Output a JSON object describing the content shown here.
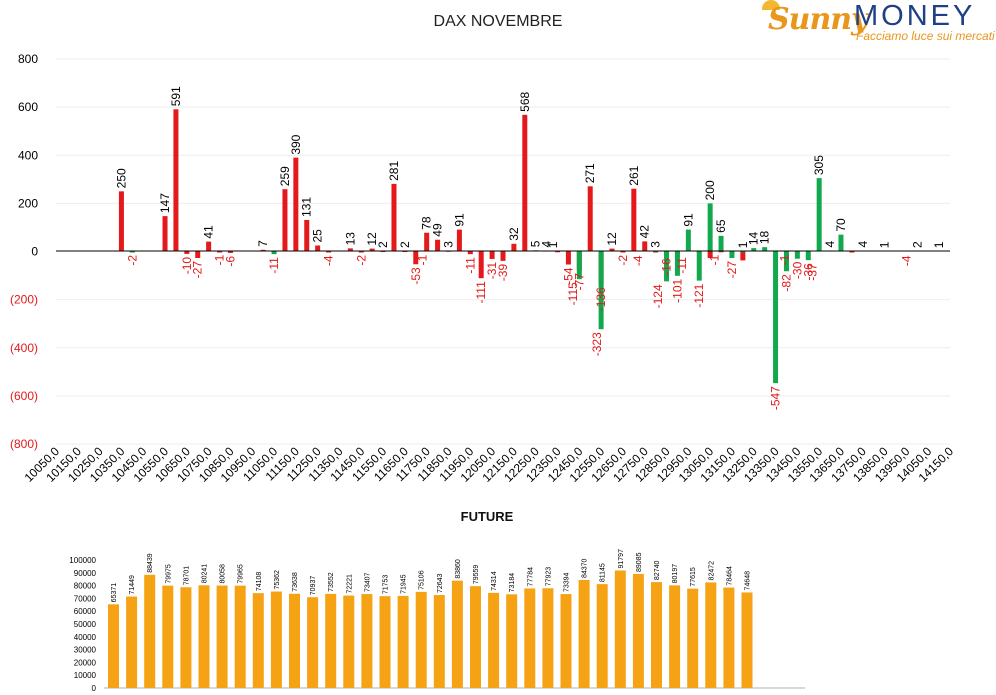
{
  "logo": {
    "brand_left": "Sunny",
    "brand_right": "MONEY",
    "tagline": "Facciamo luce sui mercati",
    "colors": {
      "orange": "#e8971c",
      "blue": "#1f3f86"
    }
  },
  "chart_data": [
    {
      "type": "bar",
      "title": "DAX NOVEMBRE",
      "ylim": [
        -800,
        800
      ],
      "yticks": [
        "800",
        "600",
        "400",
        "200",
        "0",
        "(200)",
        "(400)",
        "(600)",
        "(800)"
      ],
      "ytick_values": [
        800,
        600,
        400,
        200,
        0,
        -200,
        -400,
        -600,
        -800
      ],
      "xticks": [
        "10050,0",
        "10150,0",
        "10250,0",
        "10350,0",
        "10450,0",
        "10550,0",
        "10650,0",
        "10750,0",
        "10850,0",
        "10950,0",
        "11050,0",
        "11150,0",
        "11250,0",
        "11350,0",
        "11450,0",
        "11550,0",
        "11650,0",
        "11750,0",
        "11850,0",
        "11950,0",
        "12050,0",
        "12150,0",
        "12250,0",
        "12350,0",
        "12450,0",
        "12550,0",
        "12650,0",
        "12750,0",
        "12850,0",
        "12950,0",
        "13050,0",
        "13150,0",
        "13250,0",
        "13350,0",
        "13450,0",
        "13550,0",
        "13650,0",
        "13750,0",
        "13850,0",
        "13950,0",
        "14050,0",
        "14150,0"
      ],
      "x_range": [
        10050,
        14150
      ],
      "colors": {
        "red": "#e3191b",
        "green": "#12a84e",
        "negative_tick": "#e3191b"
      },
      "grid": true,
      "legend": "none",
      "series": [
        {
          "color": "red",
          "points": [
            {
              "x": 10350,
              "y": 250
            },
            {
              "x": 10400,
              "y": -2
            },
            {
              "x": 10550,
              "y": 147
            },
            {
              "x": 10600,
              "y": 591
            },
            {
              "x": 10650,
              "y": -10
            },
            {
              "x": 10700,
              "y": -27
            },
            {
              "x": 10750,
              "y": 41
            },
            {
              "x": 10800,
              "y": -1
            },
            {
              "x": 10850,
              "y": -6
            },
            {
              "x": 11000,
              "y": 7
            },
            {
              "x": 11100,
              "y": 259
            },
            {
              "x": 11150,
              "y": 390
            },
            {
              "x": 11200,
              "y": 131
            },
            {
              "x": 11250,
              "y": 25
            },
            {
              "x": 11300,
              "y": -4
            },
            {
              "x": 11400,
              "y": 13
            },
            {
              "x": 11450,
              "y": -2
            },
            {
              "x": 11500,
              "y": 12
            },
            {
              "x": 11550,
              "y": 2
            },
            {
              "x": 11600,
              "y": 281
            },
            {
              "x": 11650,
              "y": 2
            },
            {
              "x": 11700,
              "y": -53
            },
            {
              "x": 11750,
              "y": 78
            },
            {
              "x": 11800,
              "y": 49
            },
            {
              "x": 11850,
              "y": 3
            },
            {
              "x": 11900,
              "y": 91
            },
            {
              "x": 11950,
              "y": -11
            },
            {
              "x": 12000,
              "y": -111
            },
            {
              "x": 12050,
              "y": -31
            },
            {
              "x": 12100,
              "y": -39
            },
            {
              "x": 12150,
              "y": 32
            },
            {
              "x": 12200,
              "y": 568
            },
            {
              "x": 12250,
              "y": 5
            },
            {
              "x": 12300,
              "y": 4
            },
            {
              "x": 12350,
              "y": 1
            },
            {
              "x": 12400,
              "y": -54
            },
            {
              "x": 12450,
              "y": -77
            },
            {
              "x": 12500,
              "y": 271
            },
            {
              "x": 12550,
              "y": -136
            },
            {
              "x": 12600,
              "y": 12
            },
            {
              "x": 12650,
              "y": -2
            },
            {
              "x": 12700,
              "y": 261
            },
            {
              "x": 12750,
              "y": 42
            },
            {
              "x": 12800,
              "y": -4
            },
            {
              "x": 12850,
              "y": -16
            },
            {
              "x": 12900,
              "y": -11
            },
            {
              "x": 13000,
              "y": -1
            },
            {
              "x": 13050,
              "y": -27
            },
            {
              "x": 13100,
              "y": 1
            },
            {
              "x": 13200,
              "y": -37
            },
            {
              "x": 13700,
              "y": -4
            }
          ]
        },
        {
          "color": "green",
          "points": [
            {
              "x": 10400,
              "y": -2
            },
            {
              "x": 11050,
              "y": -11
            },
            {
              "x": 12450,
              "y": -115
            },
            {
              "x": 12550,
              "y": -323
            },
            {
              "x": 12800,
              "y": 3
            },
            {
              "x": 12850,
              "y": -124
            },
            {
              "x": 12900,
              "y": -101
            },
            {
              "x": 12950,
              "y": 91
            },
            {
              "x": 13000,
              "y": -121
            },
            {
              "x": 13050,
              "y": 200
            },
            {
              "x": 13100,
              "y": 65
            },
            {
              "x": 13150,
              "y": -27
            },
            {
              "x": 13200,
              "y": 1
            },
            {
              "x": 13250,
              "y": 14
            },
            {
              "x": 13300,
              "y": 18
            },
            {
              "x": 13350,
              "y": -547
            },
            {
              "x": 13400,
              "y": -82
            },
            {
              "x": 13450,
              "y": -30
            },
            {
              "x": 13500,
              "y": -36
            },
            {
              "x": 13550,
              "y": 305
            },
            {
              "x": 13600,
              "y": 4
            },
            {
              "x": 13650,
              "y": 70
            }
          ]
        }
      ],
      "labels": [
        {
          "x": 10350,
          "y": 250,
          "text": "250"
        },
        {
          "x": 10400,
          "y": -2,
          "text": "-2"
        },
        {
          "x": 10550,
          "y": 147,
          "text": "147"
        },
        {
          "x": 10600,
          "y": 591,
          "text": "591"
        },
        {
          "x": 10650,
          "y": -10,
          "text": "-10"
        },
        {
          "x": 10700,
          "y": -27,
          "text": "-27"
        },
        {
          "x": 10750,
          "y": 41,
          "text": "41"
        },
        {
          "x": 10800,
          "y": -1,
          "text": "-1"
        },
        {
          "x": 10850,
          "y": -6,
          "text": "-6"
        },
        {
          "x": 11000,
          "y": 7,
          "text": "7"
        },
        {
          "x": 11050,
          "y": -11,
          "text": "-11"
        },
        {
          "x": 11100,
          "y": 259,
          "text": "259"
        },
        {
          "x": 11150,
          "y": 390,
          "text": "390"
        },
        {
          "x": 11200,
          "y": 131,
          "text": "131"
        },
        {
          "x": 11250,
          "y": 25,
          "text": "25"
        },
        {
          "x": 11300,
          "y": -4,
          "text": "-4"
        },
        {
          "x": 11400,
          "y": 13,
          "text": "13"
        },
        {
          "x": 11450,
          "y": -2,
          "text": "-2"
        },
        {
          "x": 11500,
          "y": 12,
          "text": "12"
        },
        {
          "x": 11550,
          "y": 2,
          "text": "2"
        },
        {
          "x": 11600,
          "y": 281,
          "text": "281"
        },
        {
          "x": 11650,
          "y": 2,
          "text": "2"
        },
        {
          "x": 11700,
          "y": -53,
          "text": "-53"
        },
        {
          "x": 11730,
          "y": -1,
          "text": "-1"
        },
        {
          "x": 11750,
          "y": 78,
          "text": "78"
        },
        {
          "x": 11800,
          "y": 49,
          "text": "49"
        },
        {
          "x": 11850,
          "y": 3,
          "text": "3"
        },
        {
          "x": 11900,
          "y": 91,
          "text": "91"
        },
        {
          "x": 11950,
          "y": -11,
          "text": "-11"
        },
        {
          "x": 12000,
          "y": -111,
          "text": "-111"
        },
        {
          "x": 12050,
          "y": -31,
          "text": "-31"
        },
        {
          "x": 12100,
          "y": -39,
          "text": "-39"
        },
        {
          "x": 12150,
          "y": 32,
          "text": "32"
        },
        {
          "x": 12200,
          "y": 568,
          "text": "568"
        },
        {
          "x": 12250,
          "y": 5,
          "text": "5"
        },
        {
          "x": 12300,
          "y": 4,
          "text": "4"
        },
        {
          "x": 12330,
          "y": 1,
          "text": "1"
        },
        {
          "x": 12400,
          "y": -54,
          "text": "-54"
        },
        {
          "x": 12420,
          "y": -115,
          "text": "-115"
        },
        {
          "x": 12450,
          "y": -77,
          "text": "-77"
        },
        {
          "x": 12500,
          "y": 271,
          "text": "271"
        },
        {
          "x": 12550,
          "y": -136,
          "text": "-136"
        },
        {
          "x": 12530,
          "y": -323,
          "text": "-323"
        },
        {
          "x": 12600,
          "y": 12,
          "text": "12"
        },
        {
          "x": 12650,
          "y": -2,
          "text": "-2"
        },
        {
          "x": 12700,
          "y": 261,
          "text": "261"
        },
        {
          "x": 12720,
          "y": -4,
          "text": "-4"
        },
        {
          "x": 12750,
          "y": 42,
          "text": "42"
        },
        {
          "x": 12800,
          "y": 3,
          "text": "3"
        },
        {
          "x": 12810,
          "y": -124,
          "text": "-124"
        },
        {
          "x": 12850,
          "y": -16,
          "text": "-16"
        },
        {
          "x": 12900,
          "y": -101,
          "text": "-101"
        },
        {
          "x": 12920,
          "y": -11,
          "text": "-11"
        },
        {
          "x": 12950,
          "y": 91,
          "text": "91"
        },
        {
          "x": 13000,
          "y": -121,
          "text": "-121"
        },
        {
          "x": 13050,
          "y": 200,
          "text": "200"
        },
        {
          "x": 13070,
          "y": -1,
          "text": "-1"
        },
        {
          "x": 13100,
          "y": 65,
          "text": "65"
        },
        {
          "x": 13150,
          "y": -27,
          "text": "-27"
        },
        {
          "x": 13200,
          "y": 1,
          "text": "1"
        },
        {
          "x": 13250,
          "y": 14,
          "text": "14"
        },
        {
          "x": 13300,
          "y": 18,
          "text": "18"
        },
        {
          "x": 13350,
          "y": -547,
          "text": "-547"
        },
        {
          "x": 13390,
          "y": -1,
          "text": "-1"
        },
        {
          "x": 13400,
          "y": -82,
          "text": "-82"
        },
        {
          "x": 13450,
          "y": -30,
          "text": "-30"
        },
        {
          "x": 13500,
          "y": -36,
          "text": "-36"
        },
        {
          "x": 13520,
          "y": -37,
          "text": "-37"
        },
        {
          "x": 13550,
          "y": 305,
          "text": "305"
        },
        {
          "x": 13600,
          "y": 4,
          "text": "4"
        },
        {
          "x": 13650,
          "y": 70,
          "text": "70"
        },
        {
          "x": 13750,
          "y": 4,
          "text": "4"
        },
        {
          "x": 13850,
          "y": 1,
          "text": "1"
        },
        {
          "x": 13950,
          "y": -4,
          "text": "-4"
        },
        {
          "x": 14000,
          "y": 2,
          "text": "2"
        },
        {
          "x": 14100,
          "y": 1,
          "text": "1"
        }
      ]
    },
    {
      "type": "bar",
      "title": "FUTURE",
      "ylim": [
        0,
        100000
      ],
      "yticks": [
        "100000",
        "90000",
        "80000",
        "70000",
        "60000",
        "50000",
        "40000",
        "30000",
        "20000",
        "10000",
        "0"
      ],
      "ytick_values": [
        100000,
        90000,
        80000,
        70000,
        60000,
        50000,
        40000,
        30000,
        20000,
        10000,
        0
      ],
      "color": "#f5a315",
      "legend": "none",
      "values": [
        65371,
        71449,
        88439,
        79975,
        78701,
        80241,
        80058,
        79965,
        74108,
        75362,
        73638,
        70937,
        73552,
        72221,
        73407,
        71753,
        71945,
        75106,
        72643,
        83860,
        79559,
        74314,
        73184,
        77784,
        77923,
        73394,
        84370,
        81145,
        91797,
        89085,
        82740,
        80197,
        77615,
        82472,
        78464,
        74648
      ]
    }
  ]
}
